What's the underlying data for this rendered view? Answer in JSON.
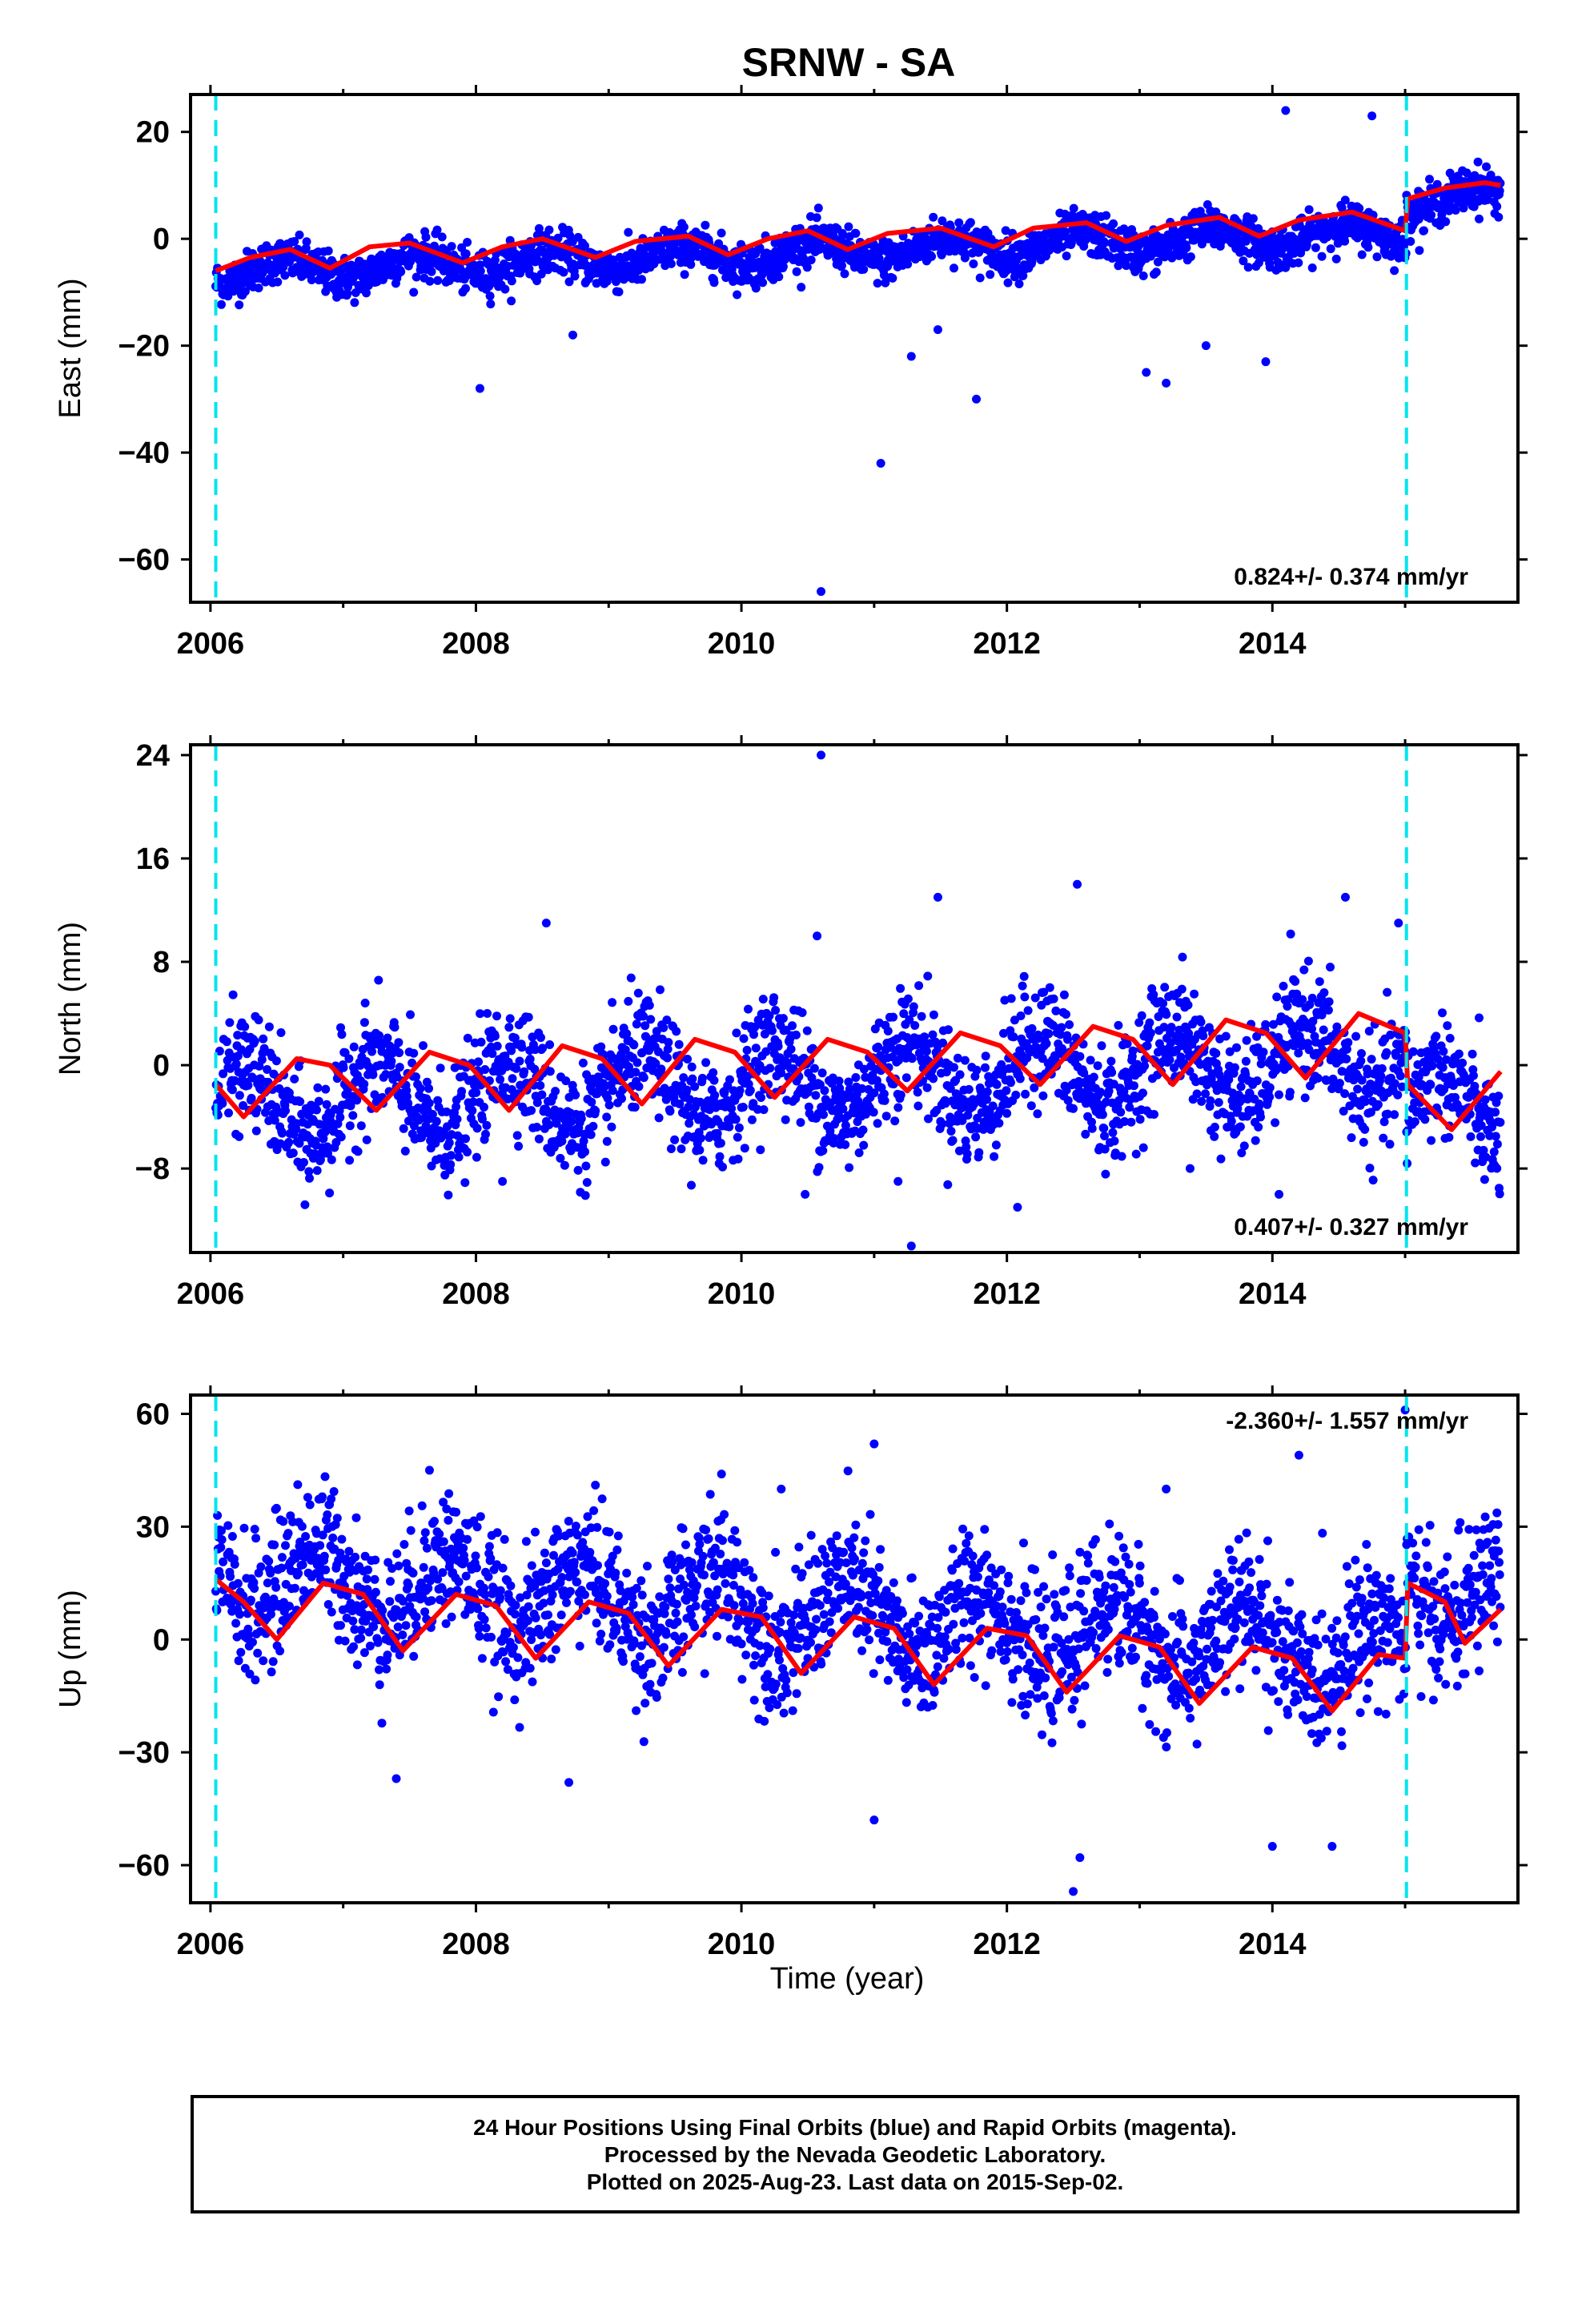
{
  "title": "SRNW - SA",
  "xlabel": "Time (year)",
  "footer": {
    "line1": "24 Hour Positions Using Final Orbits (blue) and Rapid Orbits (magenta).",
    "line2": "Processed by the Nevada Geodetic Laboratory.",
    "line3": "Plotted on 2025-Aug-23. Last data on 2015-Sep-02."
  },
  "colors": {
    "points": "#0000ff",
    "model": "#ff0000",
    "event_lines": "#00e5ee"
  },
  "chart_data": [
    {
      "type": "scatter",
      "ylabel": "East (mm)",
      "xlim": [
        2005.85,
        2015.85
      ],
      "ylim": [
        -68,
        27
      ],
      "xticks": [
        2006,
        2008,
        2010,
        2012,
        2014
      ],
      "xtick_labels": [
        "2006",
        "2008",
        "2010",
        "2012",
        "2014"
      ],
      "yticks": [
        20,
        0,
        -20,
        -40,
        -60
      ],
      "ytick_labels": [
        "20",
        "0",
        "−20",
        "−40",
        "−60"
      ],
      "event_lines": [
        2006.04,
        2015.01
      ],
      "rate_text": "0.824+/- 0.374 mm/yr",
      "rate_position": "bottom-right",
      "model": {
        "x": [
          2006.04,
          2006.3,
          2006.6,
          2006.9,
          2007.2,
          2007.5,
          2007.9,
          2008.2,
          2008.5,
          2008.9,
          2009.2,
          2009.6,
          2009.9,
          2010.2,
          2010.5,
          2010.8,
          2011.1,
          2011.5,
          2011.9,
          2012.2,
          2012.6,
          2012.9,
          2013.2,
          2013.6,
          2013.9,
          2014.2,
          2014.6,
          2015.0,
          2015.02,
          2015.3,
          2015.6,
          2015.72
        ],
        "y": [
          -6.0,
          -3.5,
          -2.0,
          -5.5,
          -1.5,
          -0.8,
          -4.5,
          -1.5,
          0.0,
          -3.5,
          -0.5,
          0.5,
          -3.0,
          0.0,
          1.5,
          -2.0,
          1.0,
          2.0,
          -1.5,
          2.0,
          3.0,
          -0.5,
          2.5,
          4.0,
          0.5,
          3.5,
          5.0,
          1.5,
          7.5,
          9.5,
          10.5,
          10.0
        ]
      },
      "series": [
        {
          "name": "daily_positions",
          "trend": 0.824,
          "offset": -3.0,
          "amplitude": 2.0,
          "phase": 0.3,
          "noise": 2.0,
          "step": 6.0
        }
      ],
      "outliers": {
        "x": [
          2008.03,
          2008.73,
          2010.6,
          2011.05,
          2011.28,
          2011.48,
          2011.77,
          2013.05,
          2013.2,
          2013.5,
          2013.95,
          2014.1,
          2014.75
        ],
        "y": [
          -28,
          -18,
          -66,
          -42,
          -22,
          -17,
          -30,
          -25,
          -27,
          -20,
          -23,
          24,
          23
        ]
      }
    },
    {
      "type": "scatter",
      "ylabel": "North (mm)",
      "xlim": [
        2005.85,
        2015.85
      ],
      "ylim": [
        -14.5,
        24.8
      ],
      "xticks": [
        2006,
        2008,
        2010,
        2012,
        2014
      ],
      "xtick_labels": [
        "2006",
        "2008",
        "2010",
        "2012",
        "2014"
      ],
      "yticks": [
        24,
        16,
        8,
        0,
        -8
      ],
      "ytick_labels": [
        "24",
        "16",
        "8",
        "0",
        "−8"
      ],
      "event_lines": [
        2006.04,
        2015.01
      ],
      "rate_text": "0.407+/- 0.327 mm/yr",
      "rate_position": "bottom-right",
      "model": {
        "x": [
          2006.04,
          2006.25,
          2006.65,
          2006.9,
          2007.25,
          2007.65,
          2007.95,
          2008.25,
          2008.65,
          2008.95,
          2009.25,
          2009.65,
          2009.95,
          2010.25,
          2010.65,
          2010.95,
          2011.25,
          2011.65,
          2011.95,
          2012.25,
          2012.65,
          2012.95,
          2013.25,
          2013.65,
          2013.95,
          2014.25,
          2014.65,
          2015.0,
          2015.02,
          2015.35,
          2015.72
        ],
        "y": [
          -1.5,
          -4.0,
          0.5,
          0.0,
          -3.5,
          1.0,
          0.0,
          -3.5,
          1.5,
          0.5,
          -3.0,
          2.0,
          1.0,
          -2.5,
          2.0,
          1.0,
          -2.0,
          2.5,
          1.5,
          -1.5,
          3.0,
          2.0,
          -1.5,
          3.5,
          2.5,
          -1.0,
          4.0,
          2.5,
          -1.5,
          -5.0,
          -0.5
        ]
      },
      "series": [
        {
          "name": "daily_positions",
          "trend": 0.407,
          "offset": -1.5,
          "amplitude": 2.8,
          "phase": 0.0,
          "noise": 2.2,
          "step": -4.0
        }
      ],
      "outliers": {
        "x": [
          2008.2,
          2008.53,
          2010.48,
          2010.57,
          2011.18,
          2011.28,
          2011.48,
          2012.08,
          2012.53,
          2013.38,
          2014.05,
          2014.55,
          2014.95,
          2010.6
        ],
        "y": [
          -9,
          11,
          -10,
          10,
          -9,
          -14,
          13,
          -11,
          14,
          -8,
          -10,
          13,
          11,
          24
        ]
      }
    },
    {
      "type": "scatter",
      "ylabel": "Up (mm)",
      "xlim": [
        2005.85,
        2015.85
      ],
      "ylim": [
        -70,
        65
      ],
      "xticks": [
        2006,
        2008,
        2010,
        2012,
        2014
      ],
      "xtick_labels": [
        "2006",
        "2008",
        "2010",
        "2012",
        "2014"
      ],
      "yticks": [
        60,
        30,
        0,
        -30,
        -60
      ],
      "ytick_labels": [
        "60",
        "30",
        "0",
        "−30",
        "−60"
      ],
      "event_lines": [
        2006.04,
        2015.01
      ],
      "rate_text": "-2.360+/- 1.557 mm/yr",
      "rate_position": "top-right",
      "model": {
        "x": [
          2006.04,
          2006.25,
          2006.5,
          2006.85,
          2007.15,
          2007.45,
          2007.85,
          2008.15,
          2008.45,
          2008.85,
          2009.15,
          2009.45,
          2009.85,
          2010.15,
          2010.45,
          2010.85,
          2011.15,
          2011.45,
          2011.85,
          2012.15,
          2012.45,
          2012.85,
          2013.15,
          2013.45,
          2013.85,
          2014.15,
          2014.45,
          2014.8,
          2015.0,
          2015.02,
          2015.3,
          2015.45,
          2015.72
        ],
        "y": [
          16,
          10,
          0,
          15,
          12,
          -3,
          12,
          9,
          -5,
          10,
          7,
          -7,
          8,
          6,
          -9,
          6,
          3,
          -12,
          3,
          1,
          -14,
          1,
          -2,
          -17,
          -2,
          -5,
          -19,
          -4,
          -5,
          15,
          10,
          -1,
          8
        ]
      },
      "series": [
        {
          "name": "daily_positions",
          "trend": -2.36,
          "offset": 8.0,
          "amplitude": 9.0,
          "phase": 0.55,
          "noise": 9.0,
          "step": 18.0
        }
      ],
      "outliers": {
        "x": [
          2007.65,
          2007.4,
          2008.7,
          2011.0,
          2011.0,
          2012.5,
          2012.55,
          2013.2,
          2014.2,
          2014.0,
          2014.45,
          2015.0,
          2009.85,
          2010.3
        ],
        "y": [
          45,
          -37,
          -38,
          52,
          -48,
          -67,
          -58,
          40,
          49,
          -55,
          -55,
          61,
          44,
          40
        ]
      }
    }
  ]
}
